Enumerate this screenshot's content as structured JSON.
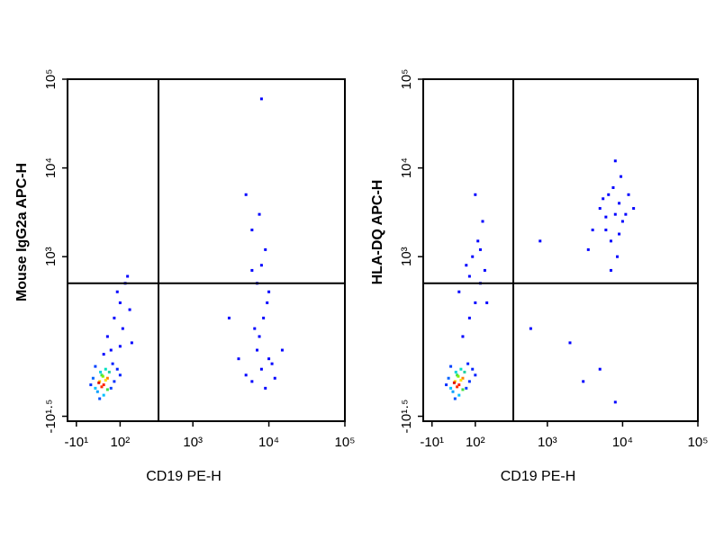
{
  "chart_data": [
    {
      "type": "scatter",
      "scale": "asinh",
      "x_scale_width": 68,
      "y_scale_width": 55,
      "xlabel": "CD19 PE-H",
      "ylabel": "Mouse IgG2a APC-H",
      "xlim": [
        -29,
        100000
      ],
      "ylim": [
        -40,
        100000
      ],
      "xticks": [
        {
          "value": -10,
          "label": "-10¹"
        },
        {
          "value": 100,
          "label": "10²"
        },
        {
          "value": 1000,
          "label": "10³"
        },
        {
          "value": 10000,
          "label": "10⁴"
        },
        {
          "value": 100000,
          "label": "10⁵"
        }
      ],
      "yticks": [
        {
          "value": -31.6,
          "label": "-10¹·⁵"
        },
        {
          "value": 1000,
          "label": "10³"
        },
        {
          "value": 10000,
          "label": "10⁴"
        },
        {
          "value": 100000,
          "label": "10⁵"
        }
      ],
      "gates": {
        "x": 350,
        "y": 500
      },
      "x": [
        30,
        40,
        50,
        45,
        60,
        35,
        55,
        25,
        70,
        65,
        40,
        50,
        80,
        20,
        45,
        55,
        38,
        60,
        48,
        42,
        90,
        100,
        30,
        75,
        60,
        80,
        100,
        120,
        70,
        110,
        90,
        140,
        130,
        50,
        150,
        100,
        6000,
        8000,
        7000,
        9000,
        10000,
        5000,
        7500,
        8500,
        6500,
        9500,
        11000,
        4000,
        12000,
        7000,
        8000,
        9000,
        6000,
        10000,
        7500,
        5000,
        8000,
        3000,
        15000,
        6000
      ],
      "y": [
        10,
        20,
        15,
        30,
        25,
        5,
        40,
        25,
        10,
        35,
        -5,
        0,
        20,
        15,
        12,
        22,
        18,
        8,
        28,
        35,
        40,
        30,
        45,
        50,
        120,
        200,
        300,
        500,
        80,
        150,
        400,
        250,
        600,
        70,
        100,
        90,
        20,
        40,
        80,
        10,
        60,
        30,
        120,
        200,
        150,
        300,
        50,
        60,
        25,
        500,
        800,
        1200,
        2000,
        400,
        3000,
        5000,
        60000,
        200,
        80,
        700
      ],
      "colors": [
        "#00c0ff",
        "#ffd000",
        "#ff2000",
        "#30e060",
        "#ff8000",
        "#00a0ff",
        "#00e0c0",
        "#0060ff",
        "#0040ff",
        "#20d0a0",
        "#0050ff",
        "#00c0ff",
        "#0030ff",
        "#0030ff",
        "#ff3000",
        "#ffe000",
        "#e01000",
        "#40e040",
        "#80f000",
        "#00d0e0",
        "#0020ff",
        "#0020ff",
        "#0040ff",
        "#0020ff",
        "#0000ff",
        "#0000ff",
        "#0000ff",
        "#0000ff",
        "#0000ff",
        "#0000ff",
        "#0000ff",
        "#0000ff",
        "#0000ff",
        "#0000ff",
        "#0000ff",
        "#0000ff",
        "#0000ff",
        "#0000ff",
        "#0000ff",
        "#0000ff",
        "#0000ff",
        "#0000ff",
        "#0000ff",
        "#0000ff",
        "#0000ff",
        "#0000ff",
        "#0000ff",
        "#0000ff",
        "#0000ff",
        "#0000ff",
        "#0000ff",
        "#0000ff",
        "#0000ff",
        "#0000ff",
        "#0000ff",
        "#0000ff",
        "#0000ff",
        "#0000ff",
        "#0000ff",
        "#0000ff"
      ]
    },
    {
      "type": "scatter",
      "scale": "asinh",
      "x_scale_width": 68,
      "y_scale_width": 55,
      "xlabel": "CD19 PE-H",
      "ylabel": "HLA-DQ APC-H",
      "xlim": [
        -29,
        100000
      ],
      "ylim": [
        -40,
        100000
      ],
      "xticks": [
        {
          "value": -10,
          "label": "-10¹"
        },
        {
          "value": 100,
          "label": "10²"
        },
        {
          "value": 1000,
          "label": "10³"
        },
        {
          "value": 10000,
          "label": "10⁴"
        },
        {
          "value": 100000,
          "label": "10⁵"
        }
      ],
      "yticks": [
        {
          "value": -31.6,
          "label": "-10¹·⁵"
        },
        {
          "value": 1000,
          "label": "10³"
        },
        {
          "value": 10000,
          "label": "10⁴"
        },
        {
          "value": 100000,
          "label": "10⁵"
        }
      ],
      "gates": {
        "x": 350,
        "y": 500
      },
      "x": [
        30,
        40,
        50,
        45,
        60,
        35,
        55,
        25,
        70,
        65,
        40,
        50,
        80,
        20,
        45,
        55,
        38,
        60,
        48,
        42,
        90,
        100,
        30,
        75,
        60,
        80,
        100,
        120,
        70,
        110,
        90,
        140,
        130,
        100,
        50,
        150,
        120,
        80,
        6000,
        8000,
        7000,
        9000,
        10000,
        5000,
        7500,
        8500,
        6500,
        9500,
        11000,
        4000,
        12000,
        7000,
        8000,
        6000,
        9000,
        5500,
        14000,
        3500,
        800,
        2000,
        3000,
        5000,
        8000,
        600
      ],
      "y": [
        10,
        20,
        15,
        30,
        25,
        5,
        40,
        25,
        10,
        35,
        -5,
        0,
        20,
        15,
        12,
        22,
        18,
        8,
        28,
        35,
        40,
        30,
        45,
        50,
        120,
        200,
        300,
        500,
        800,
        1500,
        1000,
        700,
        2500,
        5000,
        400,
        300,
        1200,
        600,
        2000,
        3000,
        1500,
        4000,
        2500,
        3500,
        6000,
        1000,
        5000,
        8000,
        3000,
        2000,
        5000,
        700,
        12000,
        2800,
        1800,
        4500,
        3500,
        1200,
        1500,
        100,
        20,
        40,
        -10,
        150
      ],
      "colors": [
        "#00c0ff",
        "#ffd000",
        "#ff2000",
        "#30e060",
        "#ff8000",
        "#00a0ff",
        "#00e0c0",
        "#0060ff",
        "#0040ff",
        "#20d0a0",
        "#0050ff",
        "#00c0ff",
        "#0030ff",
        "#0030ff",
        "#ff3000",
        "#ffe000",
        "#e01000",
        "#40e040",
        "#80f000",
        "#00d0e0",
        "#0020ff",
        "#0020ff",
        "#0040ff",
        "#0020ff",
        "#0000ff",
        "#0000ff",
        "#0000ff",
        "#0000ff",
        "#0000ff",
        "#0000ff",
        "#0000ff",
        "#0000ff",
        "#0000ff",
        "#0000ff",
        "#0000ff",
        "#0000ff",
        "#0000ff",
        "#0000ff",
        "#0000ff",
        "#0000ff",
        "#0000ff",
        "#0000ff",
        "#0000ff",
        "#0000ff",
        "#0000ff",
        "#0000ff",
        "#0000ff",
        "#0000ff",
        "#0000ff",
        "#0000ff",
        "#0000ff",
        "#0000ff",
        "#0000ff",
        "#0000ff",
        "#0000ff",
        "#0000ff",
        "#0000ff",
        "#0000ff",
        "#0000ff",
        "#0000ff",
        "#0000ff",
        "#0000ff",
        "#0000ff",
        "#0000ff"
      ]
    }
  ]
}
